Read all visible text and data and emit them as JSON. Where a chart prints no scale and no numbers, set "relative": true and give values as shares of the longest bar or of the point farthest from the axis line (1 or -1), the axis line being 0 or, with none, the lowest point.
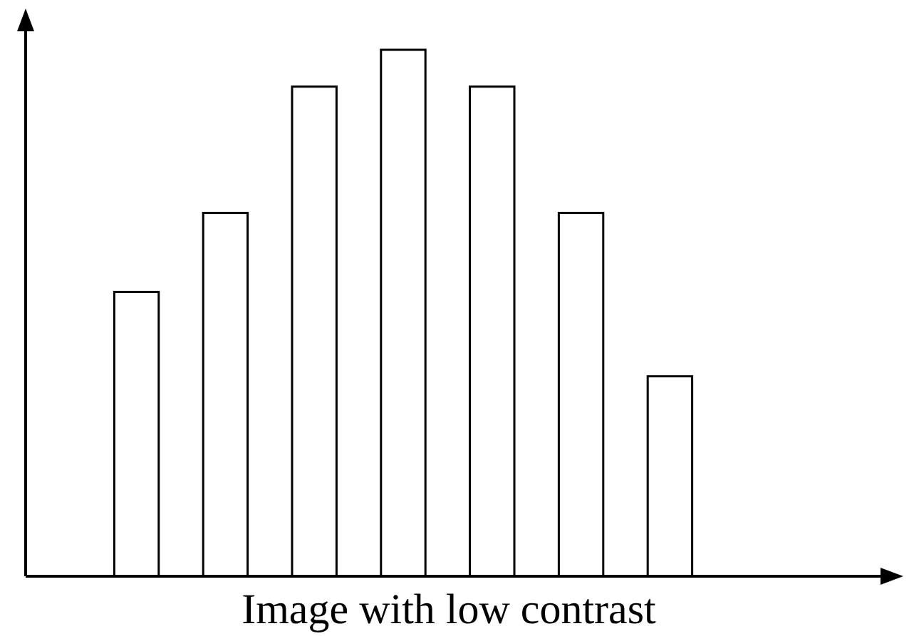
{
  "chart_data": {
    "type": "bar",
    "xlabel": "Image with low contrast",
    "relative": true,
    "categories": [
      null,
      null,
      null,
      null,
      null,
      null,
      null
    ],
    "values": [
      0.54,
      0.69,
      0.93,
      1,
      0.93,
      0.69,
      0.38
    ],
    "color": "#ffffff"
  }
}
